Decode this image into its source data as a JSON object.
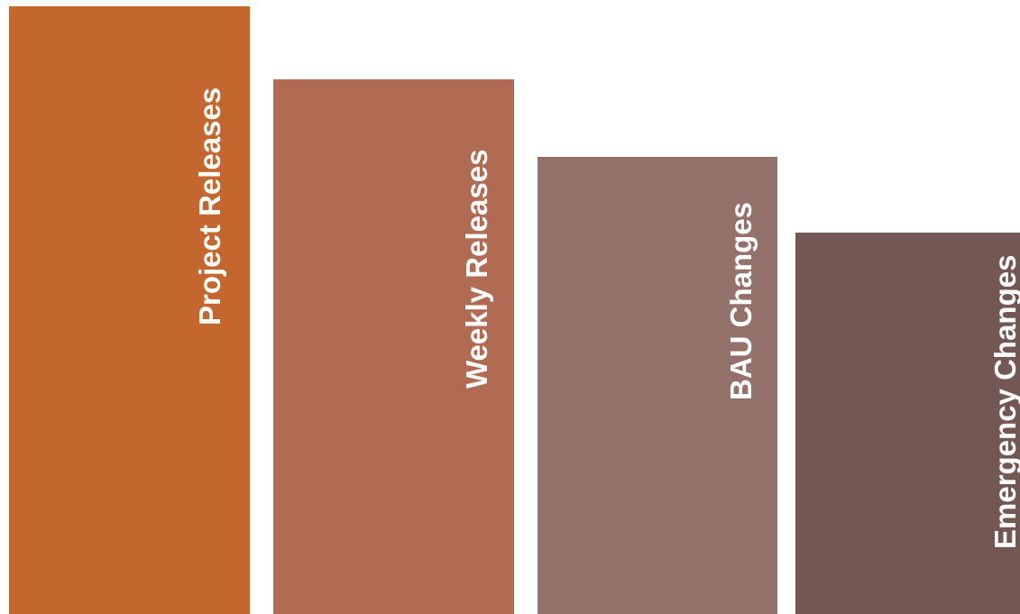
{
  "steps": [
    {
      "label": "Project Releases",
      "color": "#c4672e"
    },
    {
      "label": "Weekly Releases",
      "color": "#b16b53"
    },
    {
      "label": "BAU Changes",
      "color": "#94716b"
    },
    {
      "label": "Emergency Changes",
      "color": "#735752"
    }
  ]
}
